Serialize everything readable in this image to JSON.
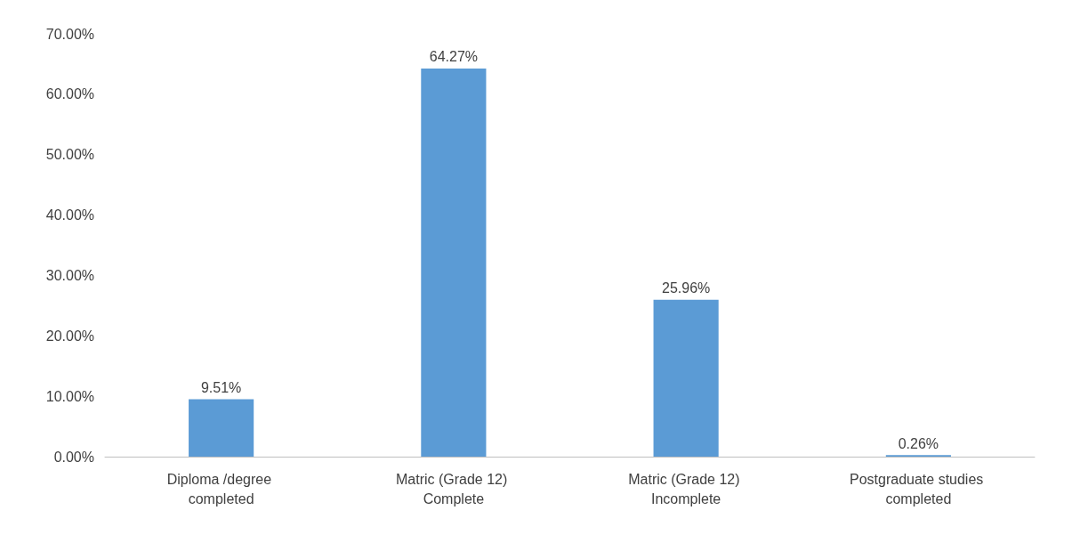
{
  "chart_data": {
    "type": "bar",
    "categories": [
      "Diploma /degree completed",
      "Matric (Grade 12) Complete",
      "Matric (Grade 12) Incomplete",
      "Postgraduate studies completed"
    ],
    "values": [
      9.51,
      64.27,
      25.96,
      0.26
    ],
    "color": "#5b9bd5",
    "value_labels": [
      "9.51%",
      "64.27%",
      "25.96%",
      "0.26%"
    ],
    "ylim": [
      0,
      70
    ],
    "yticks": [
      {
        "value": 0,
        "label": "0.00%"
      },
      {
        "value": 10,
        "label": "10.00%"
      },
      {
        "value": 20,
        "label": "20.00%"
      },
      {
        "value": 30,
        "label": "30.00%"
      },
      {
        "value": 40,
        "label": "40.00%"
      },
      {
        "value": 50,
        "label": "50.00%"
      },
      {
        "value": 60,
        "label": "60.00%"
      },
      {
        "value": 70,
        "label": "70.00%"
      }
    ],
    "grid": false
  }
}
